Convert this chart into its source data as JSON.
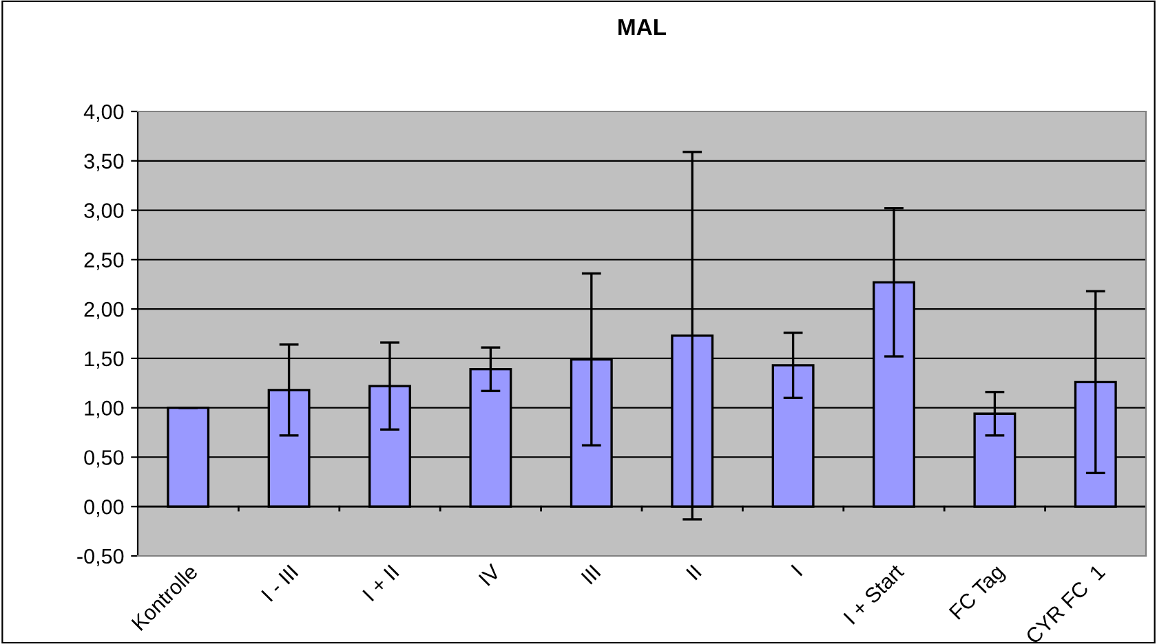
{
  "chart_data": {
    "type": "bar",
    "title": "MAL",
    "categories": [
      "Kontrolle",
      "I - III",
      "I + II",
      "IV",
      "III",
      "II",
      "I",
      "I + Start",
      "FC Tag",
      "CYR FC  1"
    ],
    "values": [
      1.0,
      1.18,
      1.22,
      1.39,
      1.49,
      1.73,
      1.43,
      2.27,
      0.94,
      1.26
    ],
    "errors": [
      0,
      0.46,
      0.44,
      0.22,
      0.87,
      1.86,
      0.33,
      0.75,
      0.22,
      0.92
    ],
    "color": "#9999ff",
    "ylim": [
      -0.5,
      4
    ],
    "yticks": [
      {
        "value": -0.5,
        "label": "-0,50"
      },
      {
        "value": 0,
        "label": "0,00"
      },
      {
        "value": 0.5,
        "label": "0,50"
      },
      {
        "value": 1,
        "label": "1,00"
      },
      {
        "value": 1.5,
        "label": "1,50"
      },
      {
        "value": 2,
        "label": "2,00"
      },
      {
        "value": 2.5,
        "label": "2,50"
      },
      {
        "value": 3,
        "label": "3,00"
      },
      {
        "value": 3.5,
        "label": "3,50"
      },
      {
        "value": 4,
        "label": "4,00"
      }
    ],
    "grid": "y"
  }
}
